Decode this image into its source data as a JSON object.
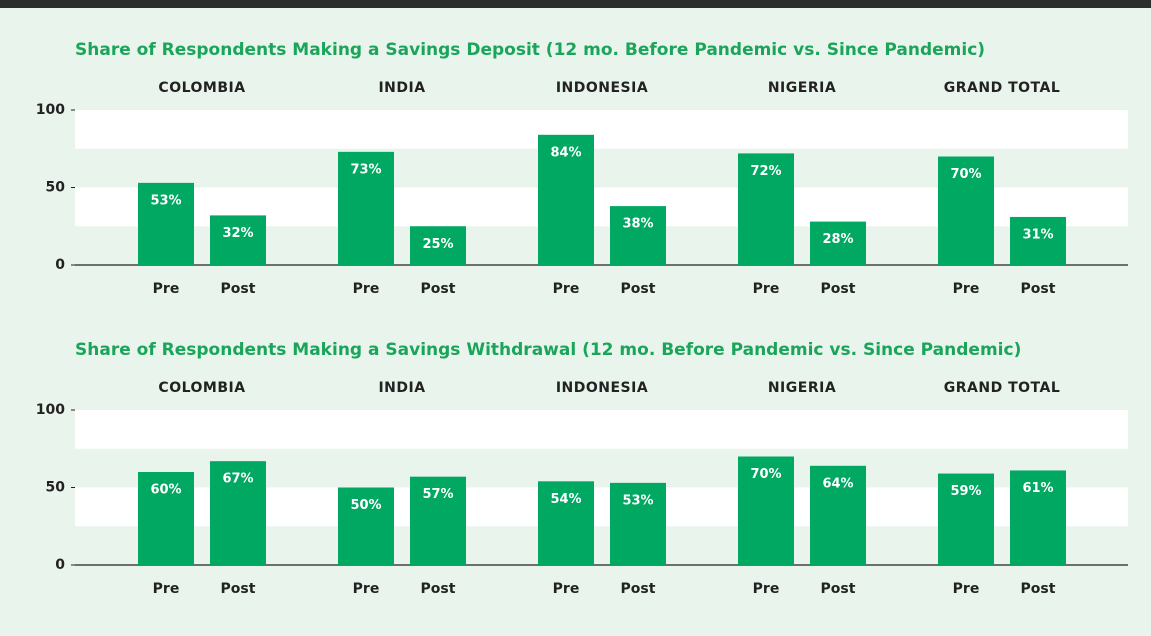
{
  "chart_data": [
    {
      "type": "bar",
      "title": "Share of Respondents Making a Savings Deposit (12 mo. Before Pandemic vs. Since Pandemic)",
      "groups": [
        "COLOMBIA",
        "INDIA",
        "INDONESIA",
        "NIGERIA",
        "GRAND TOTAL"
      ],
      "categories": [
        "Pre",
        "Post"
      ],
      "values": [
        [
          53,
          32
        ],
        [
          73,
          25
        ],
        [
          84,
          38
        ],
        [
          72,
          28
        ],
        [
          70,
          31
        ]
      ],
      "value_labels": [
        [
          "53%",
          "32%"
        ],
        [
          "73%",
          "25%"
        ],
        [
          "84%",
          "38%"
        ],
        [
          "72%",
          "28%"
        ],
        [
          "70%",
          "31%"
        ]
      ],
      "color": "#00a862",
      "ylim": [
        0,
        100
      ],
      "yticks": [
        0,
        50,
        100
      ]
    },
    {
      "type": "bar",
      "title": "Share of Respondents Making a Savings Withdrawal (12 mo. Before Pandemic vs. Since Pandemic)",
      "groups": [
        "COLOMBIA",
        "INDIA",
        "INDONESIA",
        "NIGERIA",
        "GRAND TOTAL"
      ],
      "categories": [
        "Pre",
        "Post"
      ],
      "values": [
        [
          60,
          67
        ],
        [
          50,
          57
        ],
        [
          54,
          53
        ],
        [
          70,
          64
        ],
        [
          59,
          61
        ]
      ],
      "value_labels": [
        [
          "60%",
          "67%"
        ],
        [
          "50%",
          "57%"
        ],
        [
          "54%",
          "53%"
        ],
        [
          "70%",
          "64%"
        ],
        [
          "59%",
          "61%"
        ]
      ],
      "color": "#00a862",
      "ylim": [
        0,
        100
      ],
      "yticks": [
        0,
        50,
        100
      ]
    }
  ]
}
